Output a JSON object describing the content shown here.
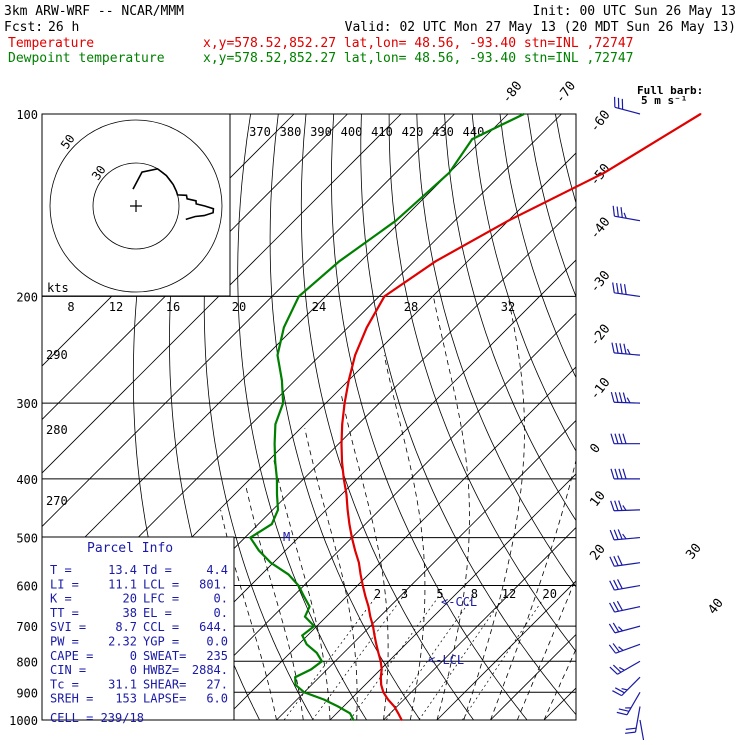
{
  "header": {
    "model": "3km ARW-WRF -- NCAR/MMM",
    "init": "Init: 00 UTC Sun 26 May 13",
    "fcst_label": "Fcst:",
    "fcst_value": "26 h",
    "valid": "Valid: 02 UTC Mon 27 May 13 (20 MDT Sun 26 May 13)",
    "temp_label": "Temperature",
    "dew_label": "Dewpoint temperature",
    "location": "x,y=578.52,852.27   lat,lon= 48.56, -93.40   stn=INL ,72747"
  },
  "colors": {
    "temperature": "#e00000",
    "dewpoint": "#008000",
    "parcel_text": "#1a1aa8",
    "barbs": "#1a1aa8"
  },
  "pressure_levels": [
    100,
    200,
    300,
    400,
    500,
    600,
    700,
    800,
    900,
    1000
  ],
  "isotherm_labels": [
    "-80",
    "-70",
    "-60",
    "-50",
    "-40",
    "-30",
    "-20",
    "-10",
    "0",
    "10",
    "20",
    "30",
    "40"
  ],
  "theta_e_labels": [
    "370",
    "380",
    "390",
    "400",
    "410",
    "420",
    "430",
    "440"
  ],
  "theta_labels": [
    "290",
    "280",
    "270"
  ],
  "mixing_ratio_labels": [
    "2",
    "3",
    "5",
    "8",
    "12",
    "20"
  ],
  "hodograph": {
    "units_label": "kts",
    "speed_rings": [
      "50",
      "30"
    ],
    "scale_labels": [
      "8",
      "12",
      "16",
      "20",
      "24",
      "28",
      "32"
    ]
  },
  "annotations": {
    "ccl": "<-CCL",
    "lcl": "<-LCL",
    "m_marker": "M"
  },
  "barb_key": {
    "line1": "Full barb:",
    "line2": "5 m s⁻¹"
  },
  "parcel_info": {
    "title": "Parcel Info",
    "rows": [
      {
        "l1": "T  =",
        "v1": "13.4",
        "l2": "Td =",
        "v2": "4.4"
      },
      {
        "l1": "LI =",
        "v1": "11.1",
        "l2": "LCL =",
        "v2": "801."
      },
      {
        "l1": "K  =",
        "v1": "20",
        "l2": "LFC =",
        "v2": "0."
      },
      {
        "l1": "TT =",
        "v1": "38",
        "l2": "EL  =",
        "v2": "0."
      },
      {
        "l1": "SVI =",
        "v1": "8.7",
        "l2": "CCL =",
        "v2": "644."
      },
      {
        "l1": "PW =",
        "v1": "2.32",
        "l2": "YGP =",
        "v2": "0.0"
      },
      {
        "l1": "CAPE =",
        "v1": "0",
        "l2": "SWEAT=",
        "v2": "235"
      },
      {
        "l1": "CIN =",
        "v1": "0",
        "l2": "HWBZ=",
        "v2": "2884."
      },
      {
        "l1": "Tc =",
        "v1": "31.1",
        "l2": "SHEAR=",
        "v2": "27."
      },
      {
        "l1": "SREH =",
        "v1": "153",
        "l2": "LAPSE=",
        "v2": "6.0"
      }
    ],
    "cell": "CELL = 239/18"
  },
  "chart_data": {
    "type": "line",
    "title": "",
    "xlabel": "",
    "ylabel": "",
    "y_axis": "pressure (hPa), log scale, decreasing upward",
    "ylim": [
      1000,
      100
    ],
    "series": [
      {
        "name": "Temperature",
        "pressure": [
          1000,
          975,
          950,
          925,
          900,
          875,
          850,
          825,
          800,
          775,
          750,
          725,
          700,
          675,
          650,
          625,
          600,
          575,
          550,
          525,
          500,
          475,
          450,
          425,
          400,
          375,
          350,
          325,
          300,
          275,
          250,
          225,
          200,
          175,
          150,
          125,
          110,
          100
        ],
        "values": [
          13.4,
          11.5,
          9.5,
          7.0,
          4.8,
          3.0,
          1.5,
          0.2,
          -1.5,
          -3.5,
          -5.5,
          -7.5,
          -9.5,
          -11.8,
          -14.0,
          -16.5,
          -19.0,
          -21.5,
          -24.0,
          -27.0,
          -30.0,
          -33.0,
          -36.0,
          -39.0,
          -42.5,
          -46.0,
          -49.5,
          -53.0,
          -56.5,
          -60.0,
          -63.5,
          -66.5,
          -69.0,
          -66.0,
          -60.0,
          -51.0,
          -47.0,
          -44.0
        ]
      },
      {
        "name": "Dewpoint temperature",
        "pressure": [
          1000,
          975,
          950,
          925,
          900,
          875,
          850,
          825,
          800,
          775,
          750,
          725,
          700,
          675,
          650,
          625,
          600,
          575,
          550,
          525,
          500,
          475,
          450,
          425,
          400,
          375,
          350,
          325,
          300,
          275,
          250,
          225,
          200,
          175,
          150,
          125,
          110,
          100
        ],
        "values": [
          4.4,
          2.5,
          -1.0,
          -5.0,
          -10.0,
          -13.0,
          -14.5,
          -13.0,
          -12.5,
          -15.0,
          -18.5,
          -21.0,
          -20.5,
          -24.0,
          -25.0,
          -28.0,
          -31.0,
          -35.0,
          -40.5,
          -45.0,
          -49.0,
          -47.5,
          -49.0,
          -52.0,
          -55.0,
          -58.5,
          -62.0,
          -65.5,
          -68.0,
          -72.5,
          -78.0,
          -82.0,
          -85.0,
          -84.0,
          -81.0,
          -80.0,
          -82.0,
          -77.0
        ]
      }
    ],
    "wind_barbs_kt": {
      "pressure": [
        1000,
        950,
        900,
        850,
        800,
        750,
        700,
        650,
        600,
        550,
        500,
        450,
        400,
        350,
        300,
        250,
        200,
        150,
        100
      ],
      "direction_deg": [
        170,
        190,
        210,
        225,
        240,
        250,
        255,
        258,
        260,
        262,
        265,
        268,
        270,
        270,
        272,
        275,
        278,
        280,
        285
      ],
      "speed_kt": [
        10,
        20,
        25,
        25,
        25,
        25,
        25,
        30,
        30,
        30,
        35,
        35,
        40,
        40,
        45,
        45,
        40,
        35,
        30
      ]
    }
  }
}
